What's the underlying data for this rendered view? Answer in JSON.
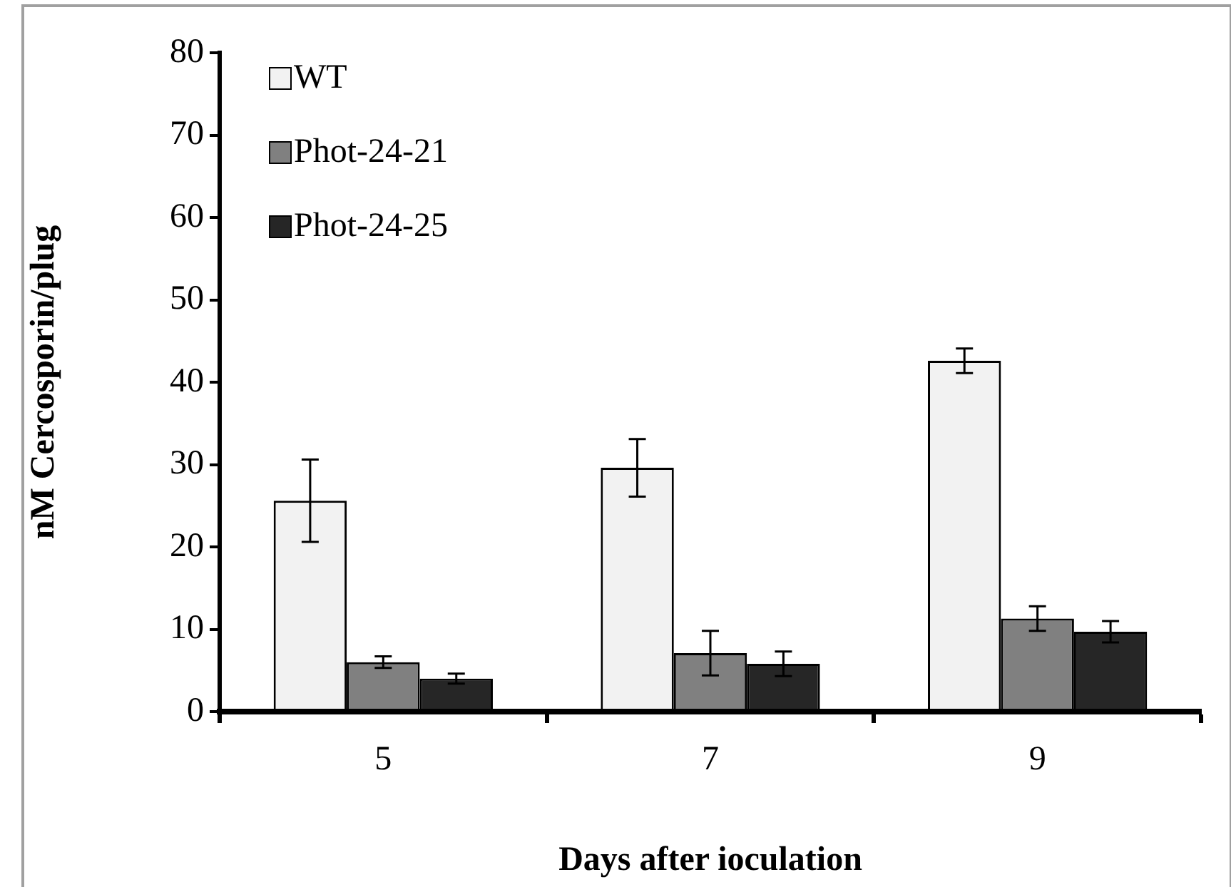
{
  "chart_data": {
    "type": "bar",
    "xlabel": "Days after ioculation",
    "ylabel": "nM Cercosporin/plug",
    "categories": [
      "5",
      "7",
      "9"
    ],
    "series": [
      {
        "name": "WT",
        "color": "#f2f2f2",
        "values": [
          25.6,
          29.6,
          42.6
        ],
        "errors": [
          5,
          3.5,
          1.5
        ]
      },
      {
        "name": "Phot-24-21",
        "color": "#808080",
        "values": [
          6.0,
          7.1,
          11.3
        ],
        "errors": [
          0.7,
          2.7,
          1.5
        ]
      },
      {
        "name": "Phot-24-25",
        "color": "#262626",
        "values": [
          4.0,
          5.8,
          9.7
        ],
        "errors": [
          0.6,
          1.5,
          1.3
        ]
      }
    ],
    "ylim": [
      0,
      80
    ],
    "yticks": [
      0,
      10,
      20,
      30,
      40,
      50,
      60,
      70,
      80
    ],
    "grid": false,
    "legend": "top left"
  }
}
